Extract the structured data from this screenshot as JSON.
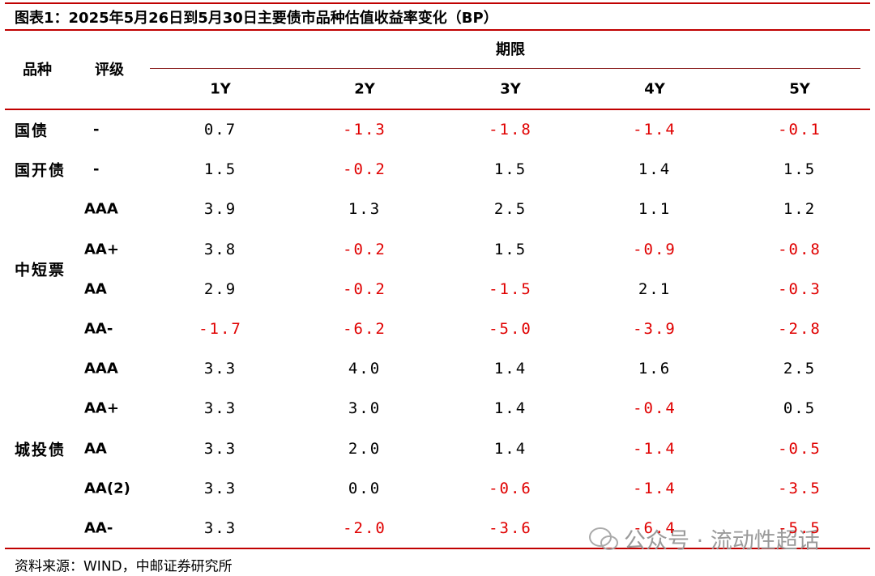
{
  "title": "图表1：2025年5月26日到5月30日主要债市品种估值收益率变化（BP）",
  "header": {
    "variety": "品种",
    "rating": "评级",
    "term": "期限",
    "tenors": [
      "1Y",
      "2Y",
      "3Y",
      "4Y",
      "5Y"
    ]
  },
  "groups": [
    {
      "name": "国债",
      "rows": [
        {
          "rating": "-",
          "values": [
            "0.7",
            "-1.3",
            "-1.8",
            "-1.4",
            "-0.1"
          ]
        }
      ]
    },
    {
      "name": "国开债",
      "rows": [
        {
          "rating": "-",
          "values": [
            "1.5",
            "-0.2",
            "1.5",
            "1.4",
            "1.5"
          ]
        }
      ]
    },
    {
      "name": "中短票",
      "rows": [
        {
          "rating": "AAA",
          "values": [
            "3.9",
            "1.3",
            "2.5",
            "1.1",
            "1.2"
          ]
        },
        {
          "rating": "AA+",
          "values": [
            "3.8",
            "-0.2",
            "1.5",
            "-0.9",
            "-0.8"
          ]
        },
        {
          "rating": "AA",
          "values": [
            "2.9",
            "-0.2",
            "-1.5",
            "2.1",
            "-0.3"
          ]
        },
        {
          "rating": "AA-",
          "values": [
            "-1.7",
            "-6.2",
            "-5.0",
            "-3.9",
            "-2.8"
          ]
        }
      ]
    },
    {
      "name": "城投债",
      "rows": [
        {
          "rating": "AAA",
          "values": [
            "3.3",
            "4.0",
            "1.4",
            "1.6",
            "2.5"
          ]
        },
        {
          "rating": "AA+",
          "values": [
            "3.3",
            "3.0",
            "1.4",
            "-0.4",
            "0.5"
          ]
        },
        {
          "rating": "AA",
          "values": [
            "3.3",
            "2.0",
            "1.4",
            "-1.4",
            "-0.5"
          ]
        },
        {
          "rating": "AA(2)",
          "values": [
            "3.3",
            "0.0",
            "-0.6",
            "-1.4",
            "-3.5"
          ]
        },
        {
          "rating": "AA-",
          "values": [
            "3.3",
            "-2.0",
            "-3.6",
            "-6.4",
            "-5.5"
          ]
        }
      ]
    }
  ],
  "source": "资料来源：WIND，中邮证券研究所",
  "watermark": "公众号 · 流动性超话"
}
